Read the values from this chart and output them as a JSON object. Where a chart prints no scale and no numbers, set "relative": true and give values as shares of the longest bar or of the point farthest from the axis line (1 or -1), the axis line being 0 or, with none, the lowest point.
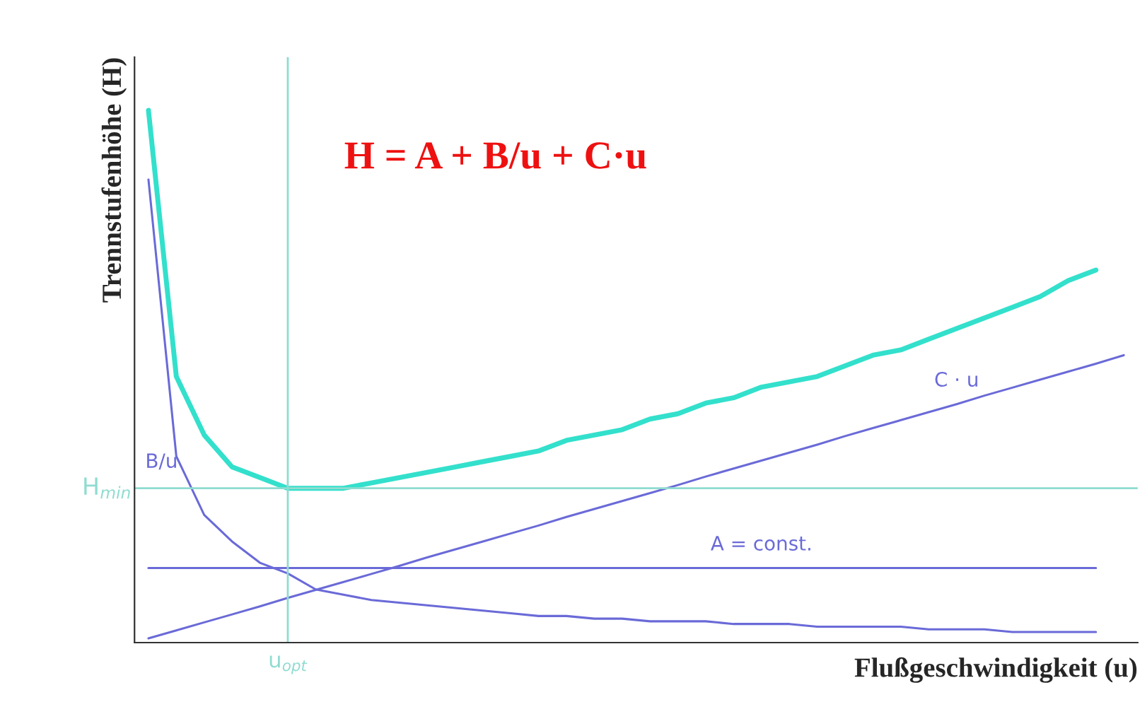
{
  "chart_data": {
    "type": "line",
    "relative": true,
    "legend": false,
    "marker": "none",
    "line_style": "solid",
    "categories": [
      null,
      null,
      null,
      null,
      null,
      null,
      null,
      null,
      null,
      null,
      null,
      null,
      null,
      null,
      null,
      null,
      null,
      null,
      null,
      null,
      null,
      null,
      null,
      null,
      null,
      null,
      null,
      null,
      null,
      null,
      null,
      null,
      null,
      null,
      null,
      null
    ],
    "xlabel": "Flußgeschwindigkeit (u)",
    "ylabel": "Trennstufenhöhe (H)",
    "annotations": [
      "H = A + B/u + C·u",
      "u$_{opt}$"
    ],
    "series": [
      {
        "color": "#33e0cc",
        "values": [
          1.0,
          0.5,
          0.39,
          0.33,
          0.31,
          0.29,
          0.29,
          0.29,
          0.3,
          0.31,
          0.32,
          0.33,
          0.34,
          0.35,
          0.36,
          0.38,
          0.39,
          0.4,
          0.42,
          0.43,
          0.45,
          0.46,
          0.48,
          0.49,
          0.5,
          0.52,
          0.54,
          0.55,
          0.57,
          0.59,
          0.61,
          0.63,
          0.65,
          0.68,
          0.7,
          null
        ]
      },
      {
        "name": "B/u",
        "color": "#6a6ad8",
        "values": [
          0.87,
          0.35,
          0.24,
          0.19,
          0.15,
          0.13,
          0.1,
          0.09,
          0.08,
          0.075,
          0.07,
          0.065,
          0.06,
          0.055,
          0.05,
          0.05,
          0.045,
          0.045,
          0.04,
          0.04,
          0.04,
          0.035,
          0.035,
          0.035,
          0.03,
          0.03,
          0.03,
          0.03,
          0.025,
          0.025,
          0.025,
          0.02,
          0.02,
          0.02,
          0.02,
          null
        ]
      },
      {
        "name": "C · u",
        "color": "#6a6ad8",
        "values": [
          0.008,
          0.023,
          0.038,
          0.053,
          0.068,
          0.084,
          0.099,
          0.114,
          0.129,
          0.144,
          0.16,
          0.175,
          0.19,
          0.205,
          0.22,
          0.236,
          0.251,
          0.266,
          0.281,
          0.296,
          0.312,
          0.327,
          0.342,
          0.357,
          0.372,
          0.388,
          0.403,
          0.418,
          0.433,
          0.448,
          0.464,
          0.479,
          0.494,
          0.509,
          0.524,
          0.54
        ]
      },
      {
        "name": "A = const.",
        "color": "#6a6ad8",
        "values": [
          0.14,
          0.14,
          0.14,
          0.14,
          0.14,
          0.14,
          0.14,
          0.14,
          0.14,
          0.14,
          0.14,
          0.14,
          0.14,
          0.14,
          0.14,
          0.14,
          0.14,
          0.14,
          0.14,
          0.14,
          0.14,
          0.14,
          0.14,
          0.14,
          0.14,
          0.14,
          0.14,
          0.14,
          0.14,
          0.14,
          0.14,
          0.14,
          0.14,
          0.14,
          0.14,
          null
        ]
      }
    ],
    "ref_lines": [
      {
        "axis": "y",
        "value": 0.29,
        "label": "H$_{min}$",
        "color": "#8fdcd0"
      }
    ]
  }
}
